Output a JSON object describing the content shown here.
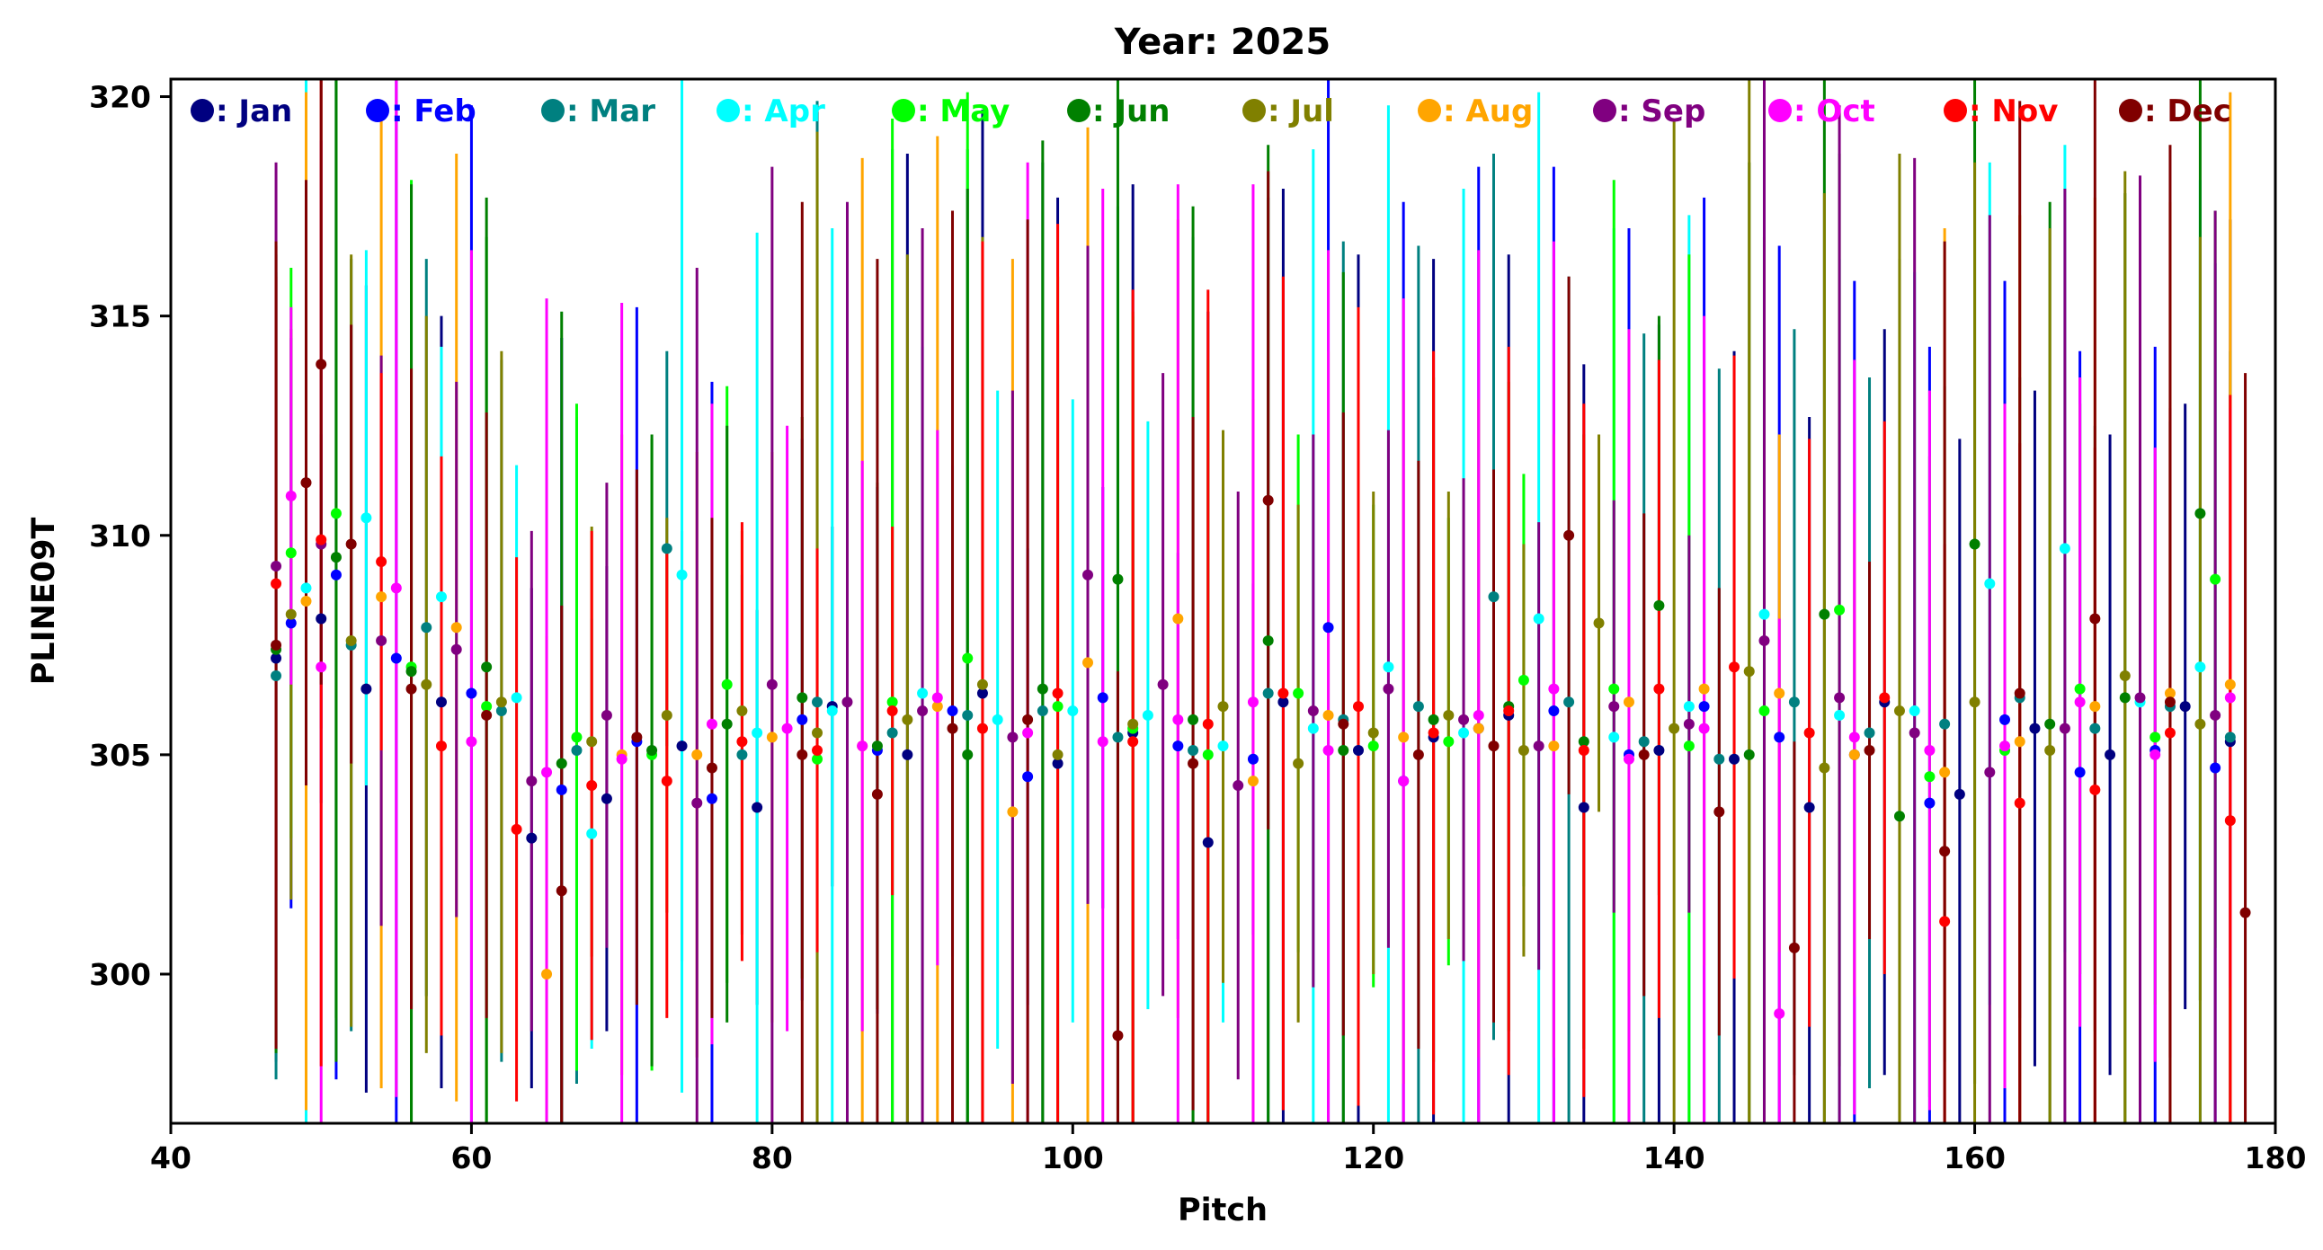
{
  "chart_data": {
    "type": "scatter",
    "title": "Year: 2025",
    "xlabel": "Pitch",
    "ylabel": "PLINE09T",
    "xlim": [
      40,
      180
    ],
    "ylim": [
      296.6,
      320.4
    ],
    "xticks": [
      40,
      60,
      80,
      100,
      120,
      140,
      160,
      180
    ],
    "yticks": [
      300,
      305,
      310,
      315,
      320
    ],
    "grid": false,
    "legend_position": "top, single row inside axes",
    "error_bars": "vertical per point",
    "x_range_of_points": [
      47,
      178
    ],
    "series": [
      {
        "name": ": Jan",
        "color": "#000080",
        "x": [
          47,
          50,
          53,
          58,
          64,
          69,
          74,
          79,
          84,
          89,
          94,
          99,
          104,
          109,
          114,
          119,
          124,
          129,
          134,
          139,
          144,
          149,
          154,
          159,
          164,
          169,
          174,
          177
        ],
        "y": [
          307.2,
          308.1,
          306.5,
          306.2,
          303.1,
          304.0,
          305.2,
          303.8,
          306.1,
          305.0,
          306.4,
          304.8,
          305.5,
          303.0,
          306.2,
          305.1,
          305.4,
          305.9,
          303.8,
          305.1,
          304.9,
          303.8,
          306.2,
          304.1,
          305.6,
          305.0,
          306.1,
          305.3
        ]
      },
      {
        "name": ": Feb",
        "color": "#0000ff",
        "x": [
          48,
          51,
          55,
          60,
          66,
          71,
          76,
          82,
          87,
          92,
          97,
          102,
          107,
          112,
          117,
          122,
          127,
          132,
          137,
          142,
          147,
          152,
          157,
          162,
          167,
          172,
          176
        ],
        "y": [
          308.0,
          309.1,
          307.2,
          306.4,
          304.2,
          305.3,
          304.0,
          305.8,
          305.1,
          306.0,
          304.5,
          306.3,
          305.2,
          304.9,
          307.9,
          304.4,
          305.6,
          306.0,
          305.0,
          306.1,
          305.4,
          305.0,
          303.9,
          305.8,
          304.6,
          305.1,
          304.7
        ]
      },
      {
        "name": ": Mar",
        "color": "#008080",
        "x": [
          47,
          52,
          57,
          62,
          67,
          73,
          78,
          83,
          88,
          93,
          98,
          103,
          108,
          113,
          118,
          123,
          128,
          133,
          138,
          143,
          148,
          153,
          158,
          163,
          168,
          173,
          177
        ],
        "y": [
          306.8,
          307.5,
          307.9,
          306.0,
          305.1,
          309.7,
          305.0,
          306.2,
          305.5,
          305.9,
          306.0,
          305.4,
          305.1,
          306.4,
          305.8,
          306.1,
          308.6,
          306.2,
          305.3,
          304.9,
          306.2,
          305.5,
          305.7,
          306.3,
          305.6,
          306.1,
          305.4
        ]
      },
      {
        "name": ": Apr",
        "color": "#00ffff",
        "x": [
          49,
          53,
          58,
          63,
          68,
          74,
          79,
          84,
          90,
          95,
          100,
          105,
          110,
          116,
          121,
          126,
          131,
          136,
          141,
          146,
          151,
          156,
          161,
          166,
          171,
          175
        ],
        "y": [
          308.8,
          310.4,
          308.6,
          306.3,
          303.2,
          309.1,
          305.5,
          306.0,
          306.4,
          305.8,
          306.0,
          305.9,
          305.2,
          305.6,
          307.0,
          305.5,
          308.1,
          305.4,
          306.1,
          308.2,
          305.9,
          306.0,
          308.9,
          309.7,
          306.2,
          307.0
        ]
      },
      {
        "name": ": May",
        "color": "#00ff00",
        "x": [
          48,
          51,
          56,
          61,
          67,
          72,
          77,
          83,
          88,
          93,
          99,
          104,
          109,
          115,
          120,
          125,
          130,
          136,
          141,
          146,
          151,
          157,
          162,
          167,
          172,
          176
        ],
        "y": [
          309.6,
          310.5,
          307.0,
          306.1,
          305.4,
          305.0,
          306.6,
          304.9,
          306.2,
          307.2,
          306.1,
          305.6,
          305.0,
          306.4,
          305.2,
          305.3,
          306.7,
          306.5,
          305.2,
          306.0,
          308.3,
          304.5,
          305.1,
          306.5,
          305.4,
          309.0
        ]
      },
      {
        "name": ": Jun",
        "color": "#008000",
        "x": [
          47,
          51,
          56,
          61,
          66,
          72,
          77,
          82,
          87,
          93,
          98,
          103,
          108,
          113,
          118,
          124,
          129,
          134,
          139,
          145,
          150,
          155,
          160,
          165,
          170,
          175
        ],
        "y": [
          307.4,
          309.5,
          306.9,
          307.0,
          304.8,
          305.1,
          305.7,
          306.3,
          305.2,
          305.0,
          306.5,
          309.0,
          305.8,
          307.6,
          305.1,
          305.8,
          306.1,
          305.3,
          308.4,
          305.0,
          308.2,
          303.6,
          309.8,
          305.7,
          306.3,
          310.5
        ]
      },
      {
        "name": ": Jul",
        "color": "#808000",
        "x": [
          48,
          52,
          57,
          62,
          68,
          73,
          78,
          83,
          89,
          94,
          99,
          104,
          110,
          115,
          120,
          125,
          130,
          135,
          140,
          145,
          150,
          155,
          160,
          165,
          170,
          175
        ],
        "y": [
          308.2,
          307.6,
          306.6,
          306.2,
          305.3,
          305.9,
          306.0,
          305.5,
          305.8,
          306.6,
          305.0,
          305.7,
          306.1,
          304.8,
          305.5,
          305.9,
          305.1,
          308.0,
          305.6,
          306.9,
          304.7,
          306.0,
          306.2,
          305.1,
          306.8,
          305.7
        ]
      },
      {
        "name": ": Aug",
        "color": "#ffa500",
        "x": [
          49,
          54,
          59,
          65,
          70,
          75,
          80,
          86,
          91,
          96,
          101,
          107,
          112,
          117,
          122,
          127,
          132,
          137,
          142,
          147,
          152,
          158,
          163,
          168,
          173,
          177
        ],
        "y": [
          308.5,
          308.6,
          307.9,
          300.0,
          305.0,
          305.0,
          305.4,
          305.2,
          306.1,
          303.7,
          307.1,
          308.1,
          304.4,
          305.9,
          305.4,
          305.6,
          305.2,
          306.2,
          306.5,
          306.4,
          305.0,
          304.6,
          305.3,
          306.1,
          306.4,
          306.6
        ]
      },
      {
        "name": ": Sep",
        "color": "#800080",
        "x": [
          47,
          50,
          54,
          59,
          64,
          69,
          75,
          80,
          85,
          90,
          96,
          101,
          106,
          111,
          116,
          121,
          126,
          131,
          136,
          141,
          146,
          151,
          156,
          161,
          166,
          171,
          176
        ],
        "y": [
          309.3,
          309.8,
          307.6,
          307.4,
          304.4,
          305.9,
          303.9,
          306.6,
          306.2,
          306.0,
          305.4,
          309.1,
          306.6,
          304.3,
          306.0,
          306.5,
          305.8,
          305.2,
          306.1,
          305.7,
          307.6,
          306.3,
          305.5,
          304.6,
          305.6,
          306.3,
          305.9
        ]
      },
      {
        "name": ": Oct",
        "color": "#ff00ff",
        "x": [
          48,
          50,
          55,
          60,
          65,
          70,
          76,
          81,
          86,
          91,
          97,
          102,
          107,
          112,
          117,
          122,
          127,
          132,
          137,
          142,
          147,
          152,
          157,
          162,
          167,
          172,
          177
        ],
        "y": [
          310.9,
          307.0,
          308.8,
          305.3,
          304.6,
          304.9,
          305.7,
          305.6,
          305.2,
          306.3,
          305.5,
          305.3,
          305.8,
          306.2,
          305.1,
          304.4,
          305.9,
          306.5,
          304.9,
          305.6,
          299.1,
          305.4,
          305.1,
          305.2,
          306.2,
          305.0,
          306.3
        ]
      },
      {
        "name": ": Nov",
        "color": "#ff0000",
        "x": [
          47,
          50,
          54,
          58,
          63,
          68,
          73,
          78,
          83,
          88,
          94,
          99,
          104,
          109,
          114,
          119,
          124,
          129,
          134,
          139,
          144,
          149,
          154,
          158,
          163,
          168,
          173,
          177
        ],
        "y": [
          308.9,
          309.9,
          309.4,
          305.2,
          303.3,
          304.3,
          304.4,
          305.3,
          305.1,
          306.0,
          305.6,
          306.4,
          305.3,
          305.7,
          306.4,
          306.1,
          305.5,
          306.0,
          305.1,
          306.5,
          307.0,
          305.5,
          306.3,
          301.2,
          303.9,
          304.2,
          305.5,
          303.5
        ]
      },
      {
        "name": ": Dec",
        "color": "#800000",
        "x": [
          47,
          49,
          50,
          52,
          56,
          61,
          66,
          71,
          76,
          82,
          87,
          92,
          97,
          103,
          108,
          113,
          118,
          123,
          128,
          133,
          138,
          143,
          148,
          153,
          158,
          163,
          168,
          173,
          178
        ],
        "y": [
          307.5,
          311.2,
          313.9,
          309.8,
          306.5,
          305.9,
          301.9,
          305.4,
          304.7,
          305.0,
          304.1,
          305.6,
          305.8,
          298.6,
          304.8,
          310.8,
          305.7,
          305.0,
          305.2,
          310.0,
          305.0,
          303.7,
          300.6,
          305.1,
          302.8,
          306.4,
          308.1,
          306.2,
          301.4
        ]
      }
    ]
  }
}
